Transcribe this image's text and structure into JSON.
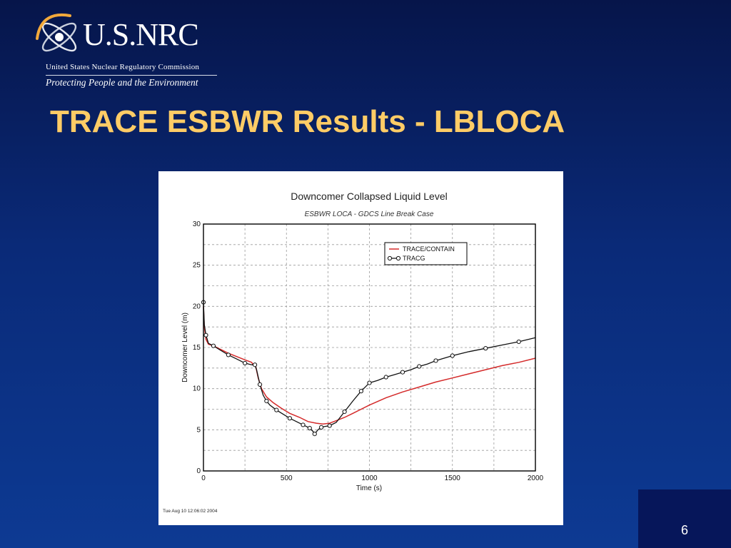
{
  "logo": {
    "wordmark": "U.S.NRC",
    "agency": "United States Nuclear Regulatory Commission",
    "tagline": "Protecting People and the Environment"
  },
  "slide": {
    "title": "TRACE ESBWR Results - LBLOCA",
    "page_number": "6"
  },
  "colors": {
    "background": "#0a2a78",
    "title": "#ffcc66",
    "trace": "#d42a2a",
    "tracg": "#111111"
  },
  "chart_data": {
    "type": "line",
    "title": "Downcomer Collapsed Liquid Level",
    "subtitle": "ESBWR LOCA - GDCS Line Break Case",
    "xlabel": "Time (s)",
    "ylabel": "Downcomer Level (m)",
    "xlim": [
      0,
      2000
    ],
    "ylim": [
      0,
      30
    ],
    "xticks": [
      0,
      500,
      1000,
      1500,
      2000
    ],
    "yticks": [
      0,
      5,
      10,
      15,
      20,
      25,
      30
    ],
    "grid": true,
    "legend_position": "top-right",
    "timestamp": "Tue Aug 10 12:06:02 2004",
    "series": [
      {
        "name": "TRACE/CONTAIN",
        "style": "line",
        "x": [
          0,
          5,
          15,
          30,
          60,
          100,
          150,
          200,
          250,
          290,
          305,
          315,
          330,
          350,
          380,
          420,
          470,
          520,
          580,
          630,
          680,
          720,
          760,
          800,
          850,
          900,
          1000,
          1100,
          1200,
          1300,
          1400,
          1500,
          1600,
          1700,
          1800,
          1900,
          2000
        ],
        "y": [
          20,
          17.5,
          16,
          15.4,
          15.2,
          14.8,
          14.3,
          13.9,
          13.5,
          13.2,
          12.8,
          12.7,
          11.3,
          10.0,
          9.0,
          8.3,
          7.6,
          7.0,
          6.5,
          6.0,
          5.8,
          5.7,
          5.8,
          6.1,
          6.5,
          7.0,
          8.0,
          8.9,
          9.6,
          10.2,
          10.8,
          11.3,
          11.8,
          12.3,
          12.8,
          13.2,
          13.7
        ]
      },
      {
        "name": "TRACG",
        "style": "line-circle",
        "x": [
          0,
          5,
          15,
          30,
          60,
          100,
          150,
          200,
          250,
          290,
          310,
          320,
          340,
          360,
          380,
          400,
          440,
          480,
          520,
          560,
          600,
          620,
          640,
          660,
          670,
          690,
          710,
          730,
          760,
          800,
          850,
          900,
          950,
          980,
          1000,
          1050,
          1100,
          1150,
          1200,
          1250,
          1300,
          1350,
          1400,
          1450,
          1500,
          1600,
          1700,
          1800,
          1900,
          2000
        ],
        "y": [
          20.5,
          17.8,
          16.5,
          15.5,
          15.2,
          14.7,
          14.1,
          13.6,
          13.1,
          12.9,
          12.9,
          12.3,
          10.5,
          9.2,
          8.5,
          8.0,
          7.4,
          6.9,
          6.4,
          6.0,
          5.6,
          5.4,
          5.2,
          4.8,
          4.5,
          5.0,
          5.3,
          5.4,
          5.5,
          5.9,
          7.2,
          8.5,
          9.7,
          10.3,
          10.7,
          11.0,
          11.4,
          11.7,
          12.0,
          12.3,
          12.7,
          13.0,
          13.4,
          13.7,
          14.0,
          14.5,
          14.9,
          15.3,
          15.7,
          16.2
        ]
      }
    ]
  }
}
